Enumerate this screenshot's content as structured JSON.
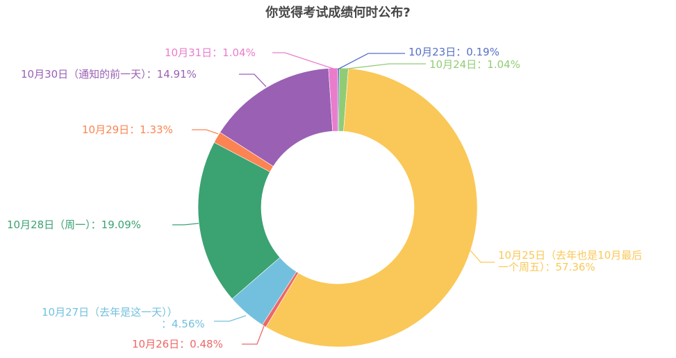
{
  "chart_data": {
    "type": "pie",
    "variant": "donut",
    "title": "你觉得考试成绩何时公布?",
    "start_angle": "12 o'clock, clockwise",
    "center": [
      486,
      299
    ],
    "outer_radius": 201,
    "inner_radius": 110,
    "categories": [
      "10月23日",
      "10月24日",
      "10月25日（去年也是10月最后一个周五）",
      "10月26日",
      "10月27日（去年是这一天））",
      "10月28日（周一）",
      "10月29日",
      "10月30日（通知的前一天）",
      "10月31日"
    ],
    "values": [
      0.19,
      1.04,
      57.36,
      0.48,
      4.56,
      19.09,
      1.33,
      14.91,
      1.04
    ],
    "colors": [
      "#5470c6",
      "#91cc75",
      "#fac858",
      "#ee6666",
      "#73c0de",
      "#3ba272",
      "#fc8452",
      "#9a60b4",
      "#ea7ccc"
    ],
    "labels": [
      "10月23日：0.19%",
      "10月24日：1.04%",
      "10月25日（去年也是10月最后一个周五）：57.36%",
      "10月26日：0.48%",
      "10月27日（去年是这一天））：4.56%",
      "10月28日（周一）：19.09%",
      "10月29日：1.33%",
      "10月30日（通知的前一天）：14.91%",
      "10月31日：1.04%"
    ],
    "unit": "%"
  },
  "labels": {
    "l23": "10月23日：0.19%",
    "l24": "10月24日：1.04%",
    "l25a": "10月25日（去年也是10月最后",
    "l25b": "一个周五）：57.36%",
    "l26": "10月26日：0.48%",
    "l27a": "10月27日（去年是这一天））",
    "l27b": "：4.56%",
    "l28": "10月28日（周一）：19.09%",
    "l29": "10月29日：1.33%",
    "l30": "10月30日（通知的前一天）：14.91%",
    "l31": "10月31日：1.04%"
  }
}
